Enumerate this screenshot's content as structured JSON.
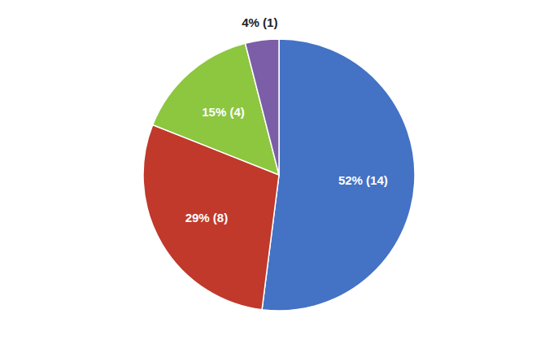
{
  "chart_data": {
    "type": "pie",
    "values": [
      52,
      29,
      15,
      4
    ],
    "value_labels": [
      "52% (14)",
      "29% (8)",
      "15% (4)",
      "4% (1)"
    ],
    "colors": [
      "#4472C4",
      "#C0392B",
      "#8DC63F",
      "#7B5EA7"
    ],
    "data_labels": true
  }
}
